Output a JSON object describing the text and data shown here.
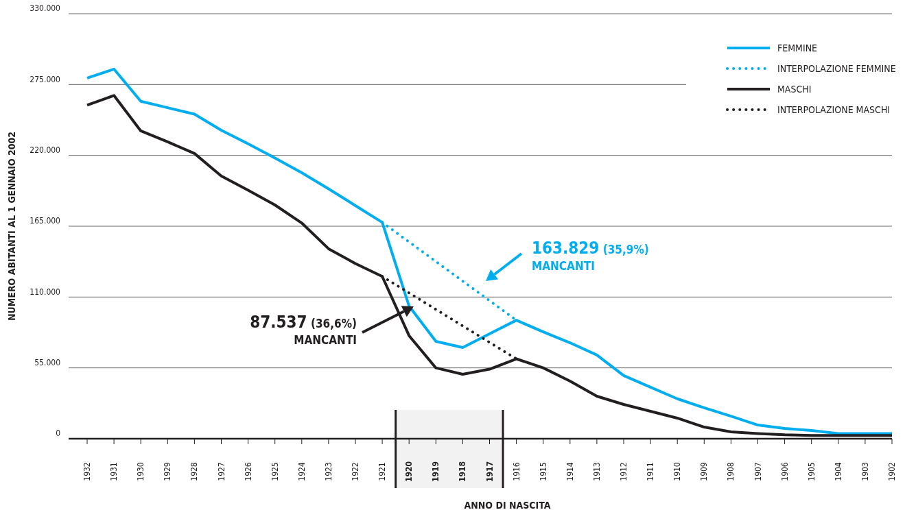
{
  "chart_data": {
    "type": "line",
    "xlabel": "ANNO DI NASCITA",
    "ylabel": "NUMERO ABITANTI AL 1 GENNAIO 2002",
    "categories": [
      "1932",
      "1931",
      "1930",
      "1929",
      "1928",
      "1927",
      "1926",
      "1925",
      "1924",
      "1923",
      "1922",
      "1921",
      "1920",
      "1919",
      "1918",
      "1917",
      "1916",
      "1915",
      "1914",
      "1913",
      "1912",
      "1911",
      "1910",
      "1909",
      "1908",
      "1907",
      "1906",
      "1905",
      "1904",
      "1903",
      "1902"
    ],
    "series": [
      {
        "name": "FEMMINE",
        "color": "#00aeef",
        "line_style": "solid",
        "values": [
          280000,
          287000,
          262000,
          257000,
          252000,
          239500,
          229000,
          218000,
          206500,
          194000,
          181000,
          168000,
          103000,
          75600,
          70800,
          81400,
          92000,
          83000,
          74500,
          65000,
          49000,
          40000,
          31000,
          24000,
          17500,
          10600,
          8000,
          6400,
          4000,
          4000,
          4000
        ]
      },
      {
        "name": "INTERPOLAZIONE FEMMINE",
        "color": "#00aeef",
        "line_style": "dotted",
        "values": [
          null,
          null,
          null,
          null,
          null,
          null,
          null,
          null,
          null,
          null,
          null,
          168000,
          null,
          null,
          null,
          null,
          92000,
          null,
          null,
          null,
          null,
          null,
          null,
          null,
          null,
          null,
          null,
          null,
          null,
          null,
          null
        ]
      },
      {
        "name": "MASCHI",
        "color": "#231f20",
        "line_style": "solid",
        "values": [
          259000,
          266500,
          239000,
          230500,
          221500,
          204000,
          193000,
          181500,
          167500,
          147500,
          136000,
          126000,
          80000,
          55000,
          50000,
          54000,
          62000,
          55000,
          44700,
          33000,
          26600,
          21300,
          16000,
          9000,
          5300,
          4000,
          3000,
          2500,
          2500,
          2500,
          2500
        ]
      },
      {
        "name": "INTERPOLAZIONE MASCHI",
        "color": "#231f20",
        "line_style": "dotted",
        "values": [
          null,
          null,
          null,
          null,
          null,
          null,
          null,
          null,
          null,
          null,
          null,
          126000,
          null,
          null,
          null,
          null,
          62000,
          null,
          null,
          null,
          null,
          null,
          null,
          null,
          null,
          null,
          null,
          null,
          null,
          null,
          null
        ]
      }
    ],
    "ylim": [
      0,
      330000
    ],
    "yticks": [
      {
        "value": 0,
        "label": "0"
      },
      {
        "value": 55000,
        "label": "55.000"
      },
      {
        "value": 110000,
        "label": "110.000"
      },
      {
        "value": 165000,
        "label": "165.000"
      },
      {
        "value": 220000,
        "label": "220.000"
      },
      {
        "value": 275000,
        "label": "275.000"
      },
      {
        "value": 330000,
        "label": "330.000"
      }
    ],
    "grid": "y",
    "legend": "top right",
    "marker": "none",
    "bands": [
      {
        "axis": "x",
        "from": "1920",
        "to": "1917",
        "color": "#231f20"
      }
    ],
    "annotations": [
      "163.829 (35,9%)\nMANCANTI",
      "87.537 (36,6%)\nMANCANTI"
    ]
  }
}
